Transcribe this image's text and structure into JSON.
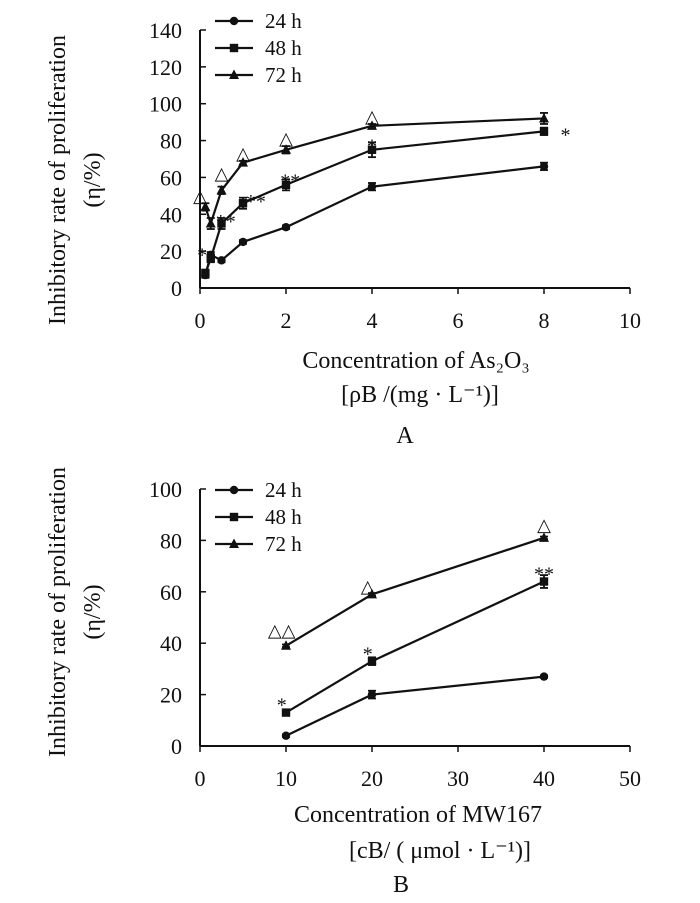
{
  "chart_data": [
    {
      "type": "line",
      "panel_label": "A",
      "ylabel_line1": "Inhibitory rate of proliferation",
      "ylabel_line2": "(η/%)",
      "xlabel_line1": "Concentration of As₂O₃",
      "xlabel_line2": "[ρB /(mg · L⁻¹)]",
      "xlim": [
        0,
        10
      ],
      "ylim": [
        0,
        140
      ],
      "xticks": [
        0,
        2,
        4,
        6,
        8,
        10
      ],
      "yticks": [
        0,
        20,
        40,
        60,
        80,
        100,
        120,
        140
      ],
      "legend_position": "top-left",
      "series": [
        {
          "name": "24 h",
          "marker": "circle",
          "x": [
            0.125,
            0.25,
            0.5,
            1,
            2,
            4,
            8
          ],
          "y": [
            7,
            18,
            15,
            25,
            33,
            55,
            66
          ],
          "err": [
            1.5,
            1.5,
            1,
            1,
            1,
            2,
            2
          ]
        },
        {
          "name": "48 h",
          "marker": "square",
          "x": [
            0.125,
            0.25,
            0.5,
            1,
            2,
            4,
            8
          ],
          "y": [
            8,
            16,
            35,
            46,
            56,
            75,
            85
          ],
          "err": [
            2,
            2,
            3,
            3,
            3,
            4,
            2
          ]
        },
        {
          "name": "72 h",
          "marker": "triangle",
          "x": [
            0.125,
            0.25,
            0.5,
            1,
            2,
            4,
            8
          ],
          "y": [
            44,
            35,
            53,
            68,
            75,
            88,
            92
          ],
          "err": [
            2,
            3,
            2,
            1,
            2,
            1,
            3
          ]
        }
      ],
      "annotations": [
        {
          "text": "△",
          "x": 0.0,
          "y": 50
        },
        {
          "text": "△",
          "x": 0.5,
          "y": 62
        },
        {
          "text": "△",
          "x": 1,
          "y": 73
        },
        {
          "text": "△",
          "x": 2,
          "y": 81
        },
        {
          "text": "△",
          "x": 4,
          "y": 93
        },
        {
          "text": "*",
          "x": 0.05,
          "y": 21
        },
        {
          "text": "**",
          "x": 0.6,
          "y": 39
        },
        {
          "text": "**",
          "x": 1.3,
          "y": 50
        },
        {
          "text": "**",
          "x": 2.1,
          "y": 61
        },
        {
          "text": "*",
          "x": 4,
          "y": 80
        },
        {
          "text": "*",
          "x": 8.5,
          "y": 86
        }
      ]
    },
    {
      "type": "line",
      "panel_label": "B",
      "ylabel_line1": "Inhibitory rate of proliferation",
      "ylabel_line2": "(η/%)",
      "xlabel_line1": "Concentration of MW167",
      "xlabel_line2": "[cB/ ( μmol · L⁻¹)]",
      "xlim": [
        0,
        50
      ],
      "ylim": [
        0,
        100
      ],
      "xticks": [
        0,
        10,
        20,
        30,
        40,
        50
      ],
      "yticks": [
        0,
        20,
        40,
        60,
        80,
        100
      ],
      "legend_position": "top-left",
      "series": [
        {
          "name": "24 h",
          "marker": "circle",
          "x": [
            10,
            20,
            40
          ],
          "y": [
            4,
            20,
            27
          ],
          "err": [
            0.5,
            1.5,
            0.5
          ]
        },
        {
          "name": "48 h",
          "marker": "square",
          "x": [
            10,
            20,
            40
          ],
          "y": [
            13,
            33,
            64
          ],
          "err": [
            1,
            1.5,
            2.5
          ]
        },
        {
          "name": "72 h",
          "marker": "triangle",
          "x": [
            10,
            20,
            40
          ],
          "y": [
            39,
            59,
            81
          ],
          "err": [
            0.5,
            0.5,
            0.5
          ]
        }
      ],
      "annotations": [
        {
          "text": "△△",
          "x": 9.5,
          "y": 45
        },
        {
          "text": "△",
          "x": 19.5,
          "y": 62
        },
        {
          "text": "△",
          "x": 40,
          "y": 86
        },
        {
          "text": "*",
          "x": 9.5,
          "y": 18
        },
        {
          "text": "*",
          "x": 19.5,
          "y": 38
        },
        {
          "text": "**",
          "x": 40,
          "y": 69
        }
      ]
    }
  ]
}
